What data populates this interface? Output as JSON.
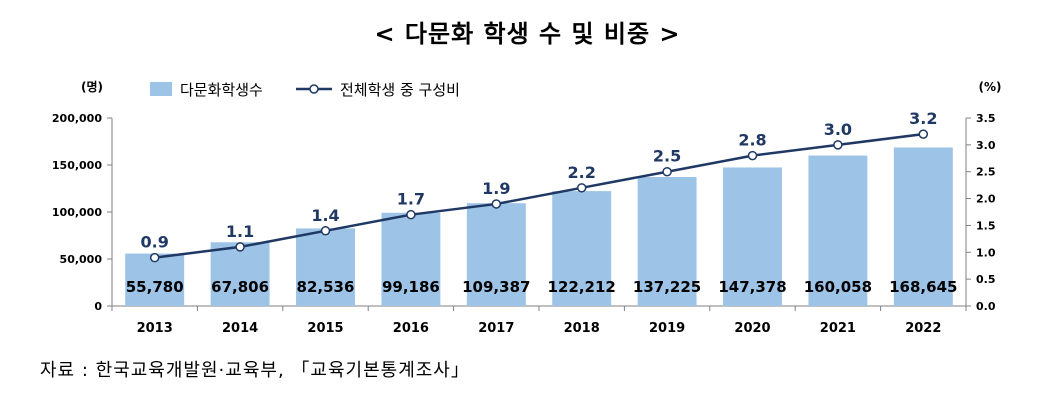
{
  "title": "< 다문화 학생 수 및 비중 >",
  "source": "자료 : 한국교육개발원·교육부, 「교육기본통계조사」",
  "colors": {
    "bar": "#9dc3e6",
    "line": "#1f3864",
    "marker_fill": "#ffffff"
  },
  "chart_data": {
    "type": "bar",
    "categories": [
      "2013",
      "2014",
      "2015",
      "2016",
      "2017",
      "2018",
      "2019",
      "2020",
      "2021",
      "2022"
    ],
    "series": [
      {
        "name": "다문화학생수",
        "type": "bar",
        "axis": "left",
        "values": [
          55780,
          67806,
          82536,
          99186,
          109387,
          122212,
          137225,
          147378,
          160058,
          168645
        ],
        "labels": [
          "55,780",
          "67,806",
          "82,536",
          "99,186",
          "109,387",
          "122,212",
          "137,225",
          "147,378",
          "160,058",
          "168,645"
        ]
      },
      {
        "name": "전체학생 중 구성비",
        "type": "line",
        "axis": "right",
        "values": [
          0.9,
          1.1,
          1.4,
          1.7,
          1.9,
          2.2,
          2.5,
          2.8,
          3.0,
          3.2
        ],
        "labels": [
          "0.9",
          "1.1",
          "1.4",
          "1.7",
          "1.9",
          "2.2",
          "2.5",
          "2.8",
          "3.0",
          "3.2"
        ]
      }
    ],
    "y_left": {
      "unit": "(명)",
      "range": [
        0,
        200000
      ],
      "ticks": [
        "0",
        "50,000",
        "100,000",
        "150,000",
        "200,000"
      ]
    },
    "y_right": {
      "unit": "(%)",
      "range": [
        0,
        3.5
      ],
      "ticks": [
        "0.0",
        "0.5",
        "1.0",
        "1.5",
        "2.0",
        "2.5",
        "3.0",
        "3.5"
      ]
    },
    "grid": false,
    "legend_position": "top"
  }
}
